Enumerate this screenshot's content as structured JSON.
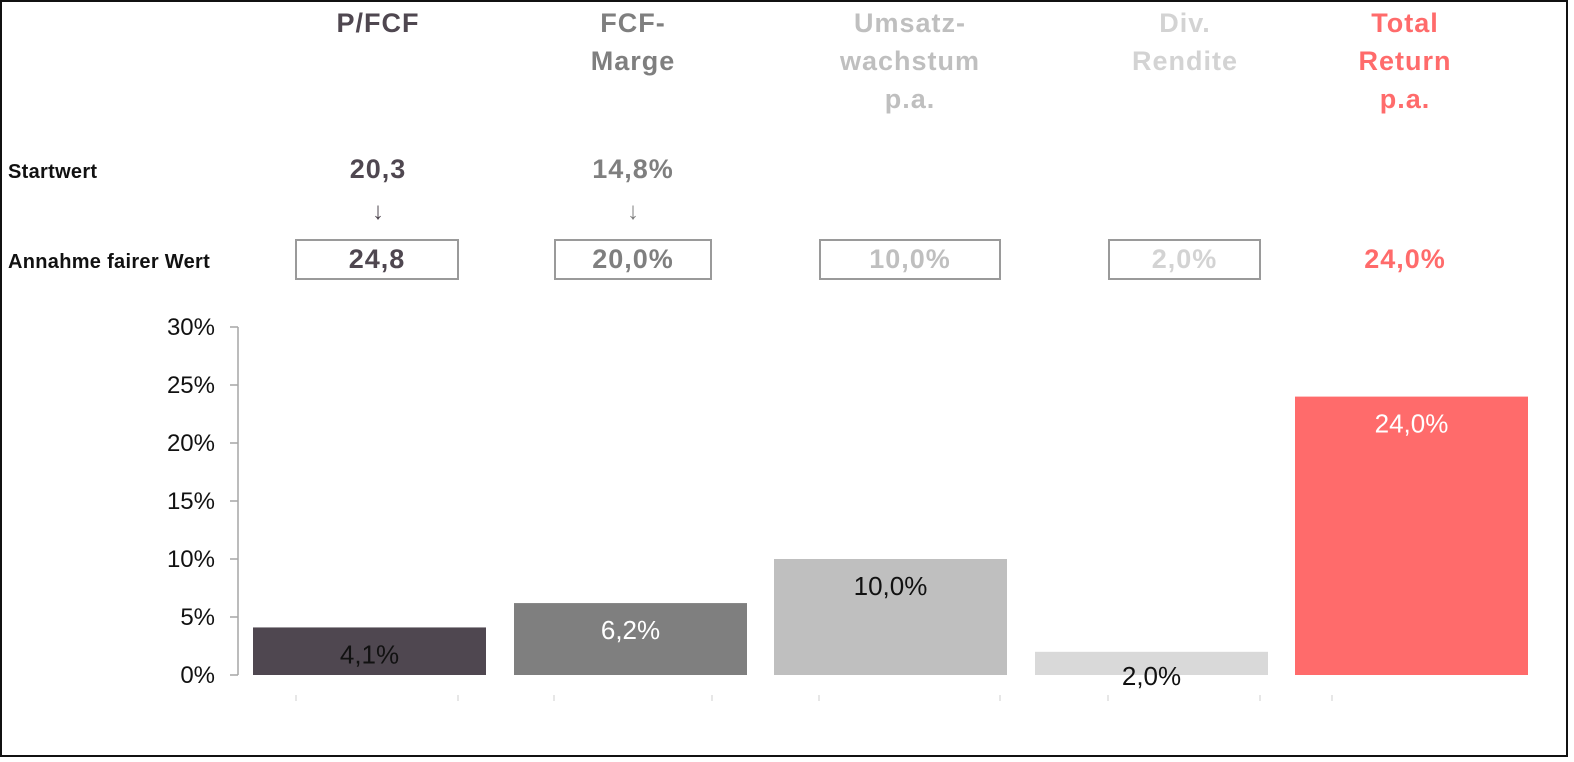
{
  "colors": {
    "pfcf": "#4f4750",
    "fcf": "#7f7f7f",
    "umsatz": "#bfbfbf",
    "div": "#d9d9d9",
    "total": "#ff6b6b",
    "pfcf_text": "#4f4750",
    "fcf_text": "#7f7f7f",
    "umsatz_text": "#bfbfbf",
    "div_text": "#d3d3d3",
    "total_text": "#ff6b6b"
  },
  "headers": {
    "pfcf": "P/FCF",
    "fcf": "FCF-\nMarge",
    "umsatz": "Umsatz-\nwachstum\np.a.",
    "div": "Div.\nRendite",
    "total": "Total\nReturn\np.a."
  },
  "rows": {
    "start_label": "Startwert",
    "fair_label": "Annahme fairer Wert"
  },
  "start_values": {
    "pfcf": "20,3",
    "fcf": "14,8%"
  },
  "arrow_icon": "arrow-down-icon",
  "fair_values": {
    "pfcf": "24,8",
    "fcf": "20,0%",
    "umsatz": "10,0%",
    "div": "2,0%",
    "total": "24,0%"
  },
  "chart_data": {
    "type": "bar",
    "categories": [
      "P/FCF",
      "FCF-Marge",
      "Umsatzwachstum p.a.",
      "Div. Rendite",
      "Total Return p.a."
    ],
    "values": [
      4.1,
      6.2,
      10.0,
      2.0,
      24.0
    ],
    "data_labels": [
      "4,1%",
      "6,2%",
      "10,0%",
      "2,0%",
      "24,0%"
    ],
    "y_ticks": [
      "0%",
      "5%",
      "10%",
      "15%",
      "20%",
      "25%",
      "30%"
    ],
    "ylim": [
      0,
      30
    ],
    "grid": false,
    "legend": "none",
    "bar_colors": [
      "#4f4750",
      "#7f7f7f",
      "#bfbfbf",
      "#d9d9d9",
      "#ff6b6b"
    ],
    "label_colors": [
      "#111111",
      "#ffffff",
      "#111111",
      "#111111",
      "#ffffff"
    ]
  }
}
